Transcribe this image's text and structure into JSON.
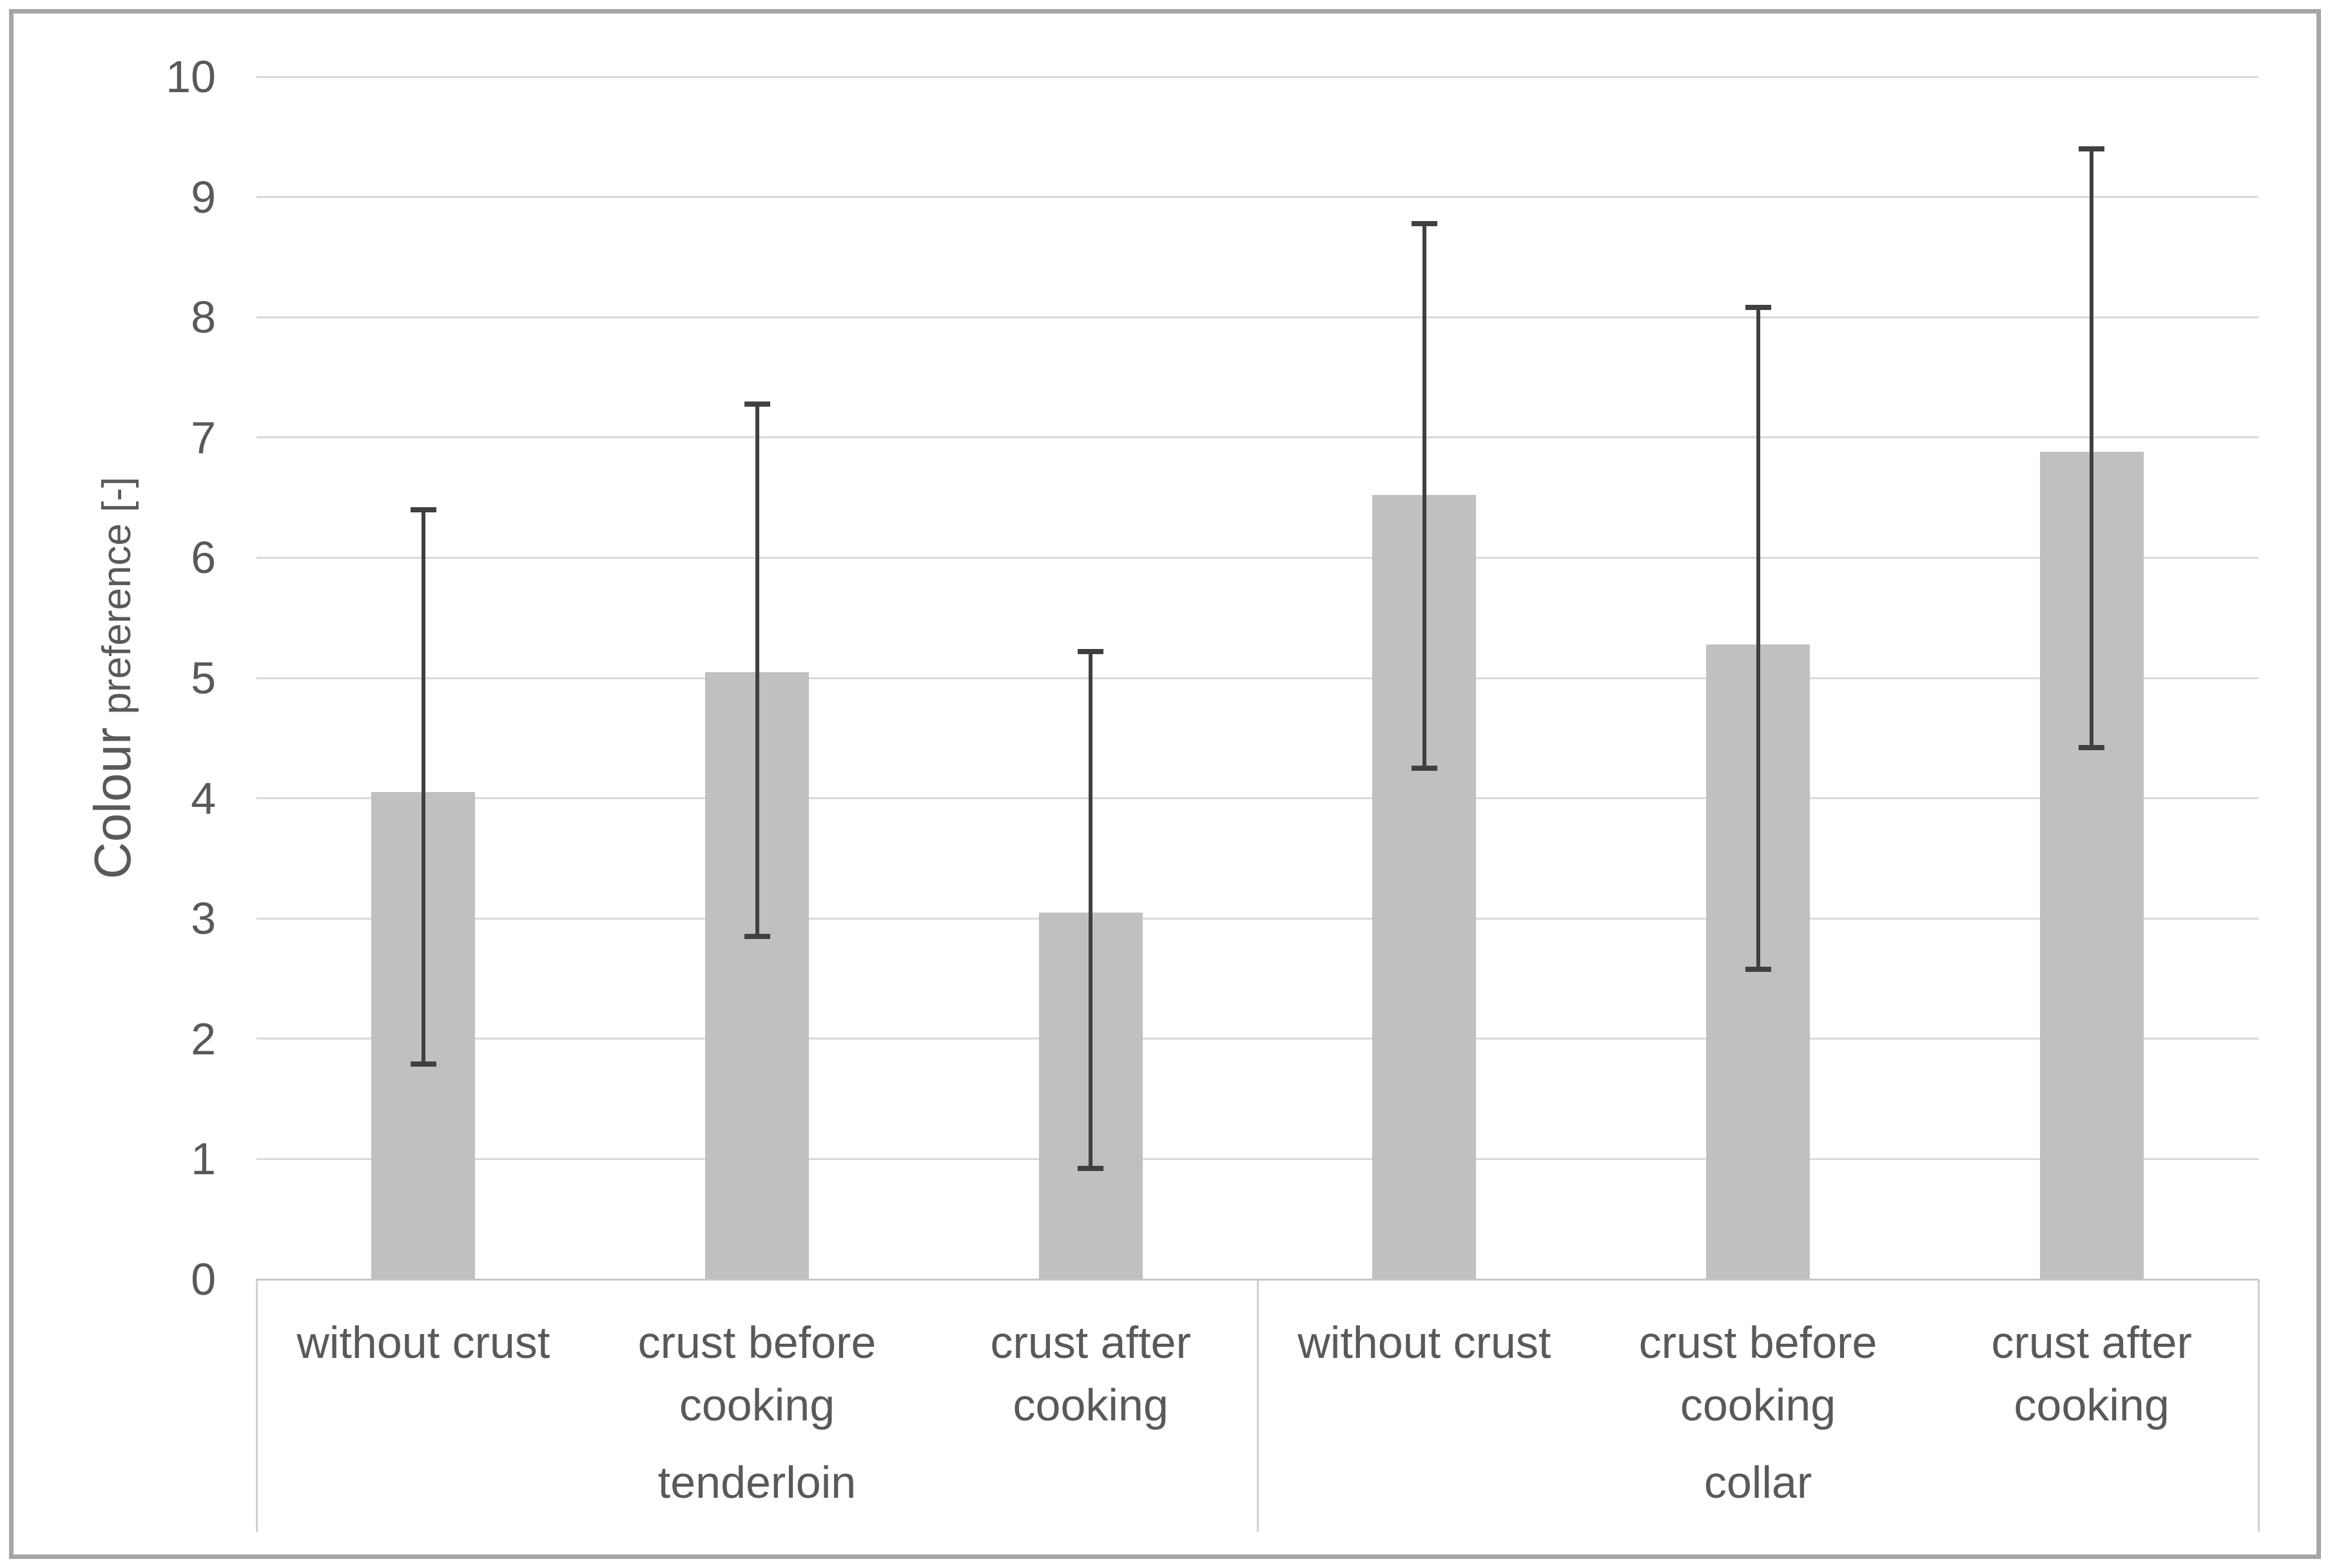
{
  "chart_data": {
    "type": "bar",
    "title": "",
    "ylabel_main": "Colour",
    "ylabel_sub": "preference [-]",
    "ylim": [
      0,
      10
    ],
    "ytick_interval": 1,
    "yticks": [
      "0",
      "1",
      "2",
      "3",
      "4",
      "5",
      "6",
      "7",
      "8",
      "9",
      "10"
    ],
    "grid": true,
    "legend_position": "none",
    "groups": [
      {
        "label": "tenderloin",
        "categories": [
          "without crust",
          "crust before cooking",
          "crust after cooking"
        ],
        "values": [
          4.05,
          5.05,
          3.05
        ],
        "error_upper": [
          6.4,
          7.28,
          5.22
        ],
        "error_lower": [
          1.79,
          2.85,
          0.92
        ]
      },
      {
        "label": "collar",
        "categories": [
          "without crust",
          "crust before cooking",
          "crust after cooking"
        ],
        "values": [
          6.52,
          5.28,
          6.88
        ],
        "error_upper": [
          8.78,
          8.08,
          9.4
        ],
        "error_lower": [
          4.25,
          2.58,
          4.42
        ]
      }
    ],
    "colors": {
      "bar_fill": "#c0c0c0",
      "error_bar": "#404040",
      "gridline": "#d9d9d9",
      "axis_line": "#c6c6c6",
      "text": "#595959",
      "border": "#a6a6a6",
      "background": "#ffffff"
    }
  }
}
